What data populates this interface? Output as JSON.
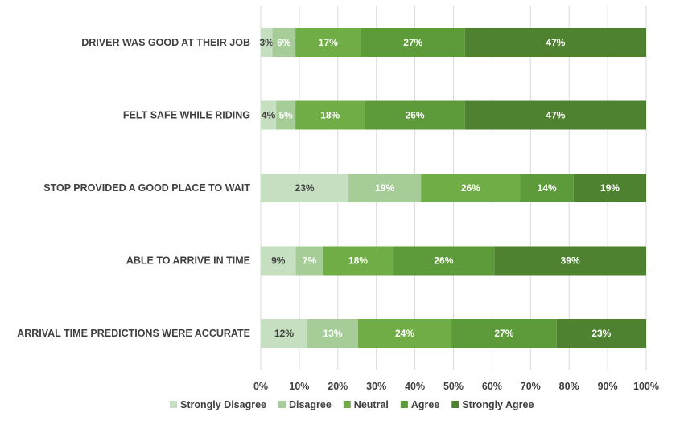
{
  "chart_data": {
    "type": "bar",
    "orientation": "horizontal",
    "stacked": "percent",
    "categories": [
      "DRIVER WAS GOOD AT THEIR JOB",
      "FELT SAFE WHILE RIDING",
      "STOP PROVIDED A GOOD PLACE TO WAIT",
      "ABLE TO ARRIVE IN TIME",
      "ARRIVAL TIME PREDICTIONS WERE ACCURATE"
    ],
    "series": [
      {
        "name": "Strongly Disagree",
        "color": "#c5dfc0",
        "label_color": "#404040",
        "values": [
          3,
          4,
          23,
          9,
          12
        ]
      },
      {
        "name": "Disagree",
        "color": "#a6cc98",
        "label_color": "#ffffff",
        "values": [
          6,
          5,
          19,
          7,
          13
        ]
      },
      {
        "name": "Neutral",
        "color": "#70ad47",
        "label_color": "#ffffff",
        "values": [
          17,
          18,
          26,
          18,
          24
        ]
      },
      {
        "name": "Agree",
        "color": "#5c9a3a",
        "label_color": "#ffffff",
        "values": [
          27,
          26,
          14,
          26,
          27
        ]
      },
      {
        "name": "Strongly Agree",
        "color": "#4e8130",
        "label_color": "#ffffff",
        "values": [
          47,
          47,
          19,
          39,
          23
        ]
      }
    ],
    "xlim": [
      0,
      100
    ],
    "x_ticks": [
      "0%",
      "10%",
      "20%",
      "30%",
      "40%",
      "50%",
      "60%",
      "70%",
      "80%",
      "90%",
      "100%"
    ],
    "grid": true,
    "legend": "bottom",
    "title": "",
    "xlabel": "",
    "ylabel": ""
  }
}
